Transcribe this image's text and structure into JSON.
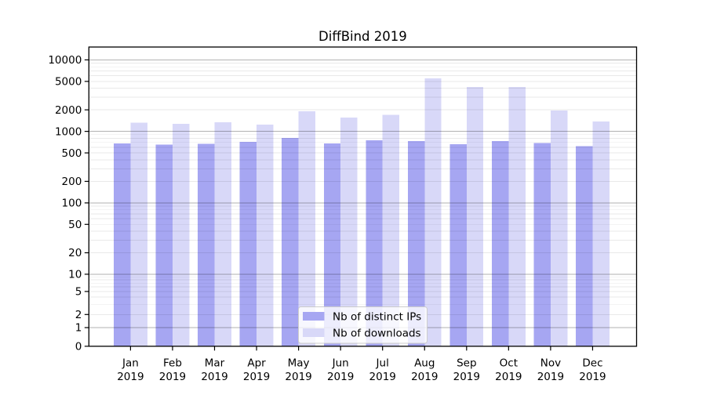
{
  "chart_data": {
    "type": "bar",
    "title": "DiffBind 2019",
    "categories": [
      "Jan",
      "Feb",
      "Mar",
      "Apr",
      "May",
      "Jun",
      "Jul",
      "Aug",
      "Sep",
      "Oct",
      "Nov",
      "Dec"
    ],
    "x_year_label": "2019",
    "series": [
      {
        "name": "Nb of distinct IPs",
        "color": "#a6a6f2",
        "values": [
          680,
          650,
          670,
          710,
          810,
          680,
          750,
          730,
          660,
          730,
          690,
          620
        ]
      },
      {
        "name": "Nb of downloads",
        "color": "#d8d8f8",
        "values": [
          1320,
          1270,
          1340,
          1240,
          1900,
          1560,
          1700,
          5500,
          4200,
          4200,
          1960,
          1370
        ]
      }
    ],
    "yscale": "symlog",
    "yticks": [
      0,
      1,
      2,
      5,
      10,
      20,
      50,
      100,
      200,
      500,
      1000,
      2000,
      5000,
      10000
    ],
    "ylim": [
      0,
      14600
    ],
    "grid": true,
    "legend_position": "lower center"
  },
  "colors": {
    "major_grid": "#b4b4b4",
    "minor_grid": "#eaeaea",
    "axis": "#000000",
    "background": "#ffffff"
  }
}
